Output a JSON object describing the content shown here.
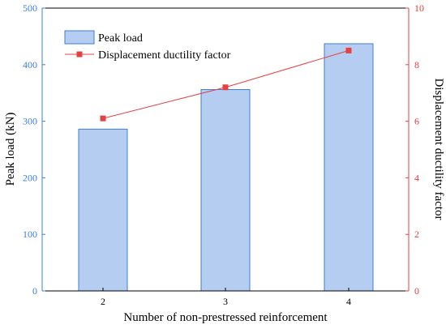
{
  "chart_data": {
    "type": "bar",
    "xlabel": "Number of non-prestressed reinforcement",
    "categories": [
      "2",
      "3",
      "4"
    ],
    "y_left": {
      "label": "Peak load (kN)",
      "ylim": [
        0,
        500
      ],
      "ticks": [
        0,
        100,
        200,
        300,
        400,
        500
      ],
      "color": "#3f7fd6"
    },
    "y_right": {
      "label": "Displacement ductility factor",
      "ylim": [
        0,
        10
      ],
      "ticks": [
        0,
        2,
        4,
        6,
        8,
        10
      ],
      "color": "#e64141"
    },
    "series": [
      {
        "name": "Peak load",
        "type": "bar",
        "axis": "left",
        "values": [
          286,
          356,
          437
        ],
        "fill": "#b5cdf0",
        "stroke": "#3f7fd6"
      },
      {
        "name": "Displacement ductility factor",
        "type": "line",
        "axis": "right",
        "values": [
          6.1,
          7.2,
          8.5
        ],
        "color": "#e64141"
      }
    ],
    "legend_position": "top-left",
    "grid": false
  }
}
